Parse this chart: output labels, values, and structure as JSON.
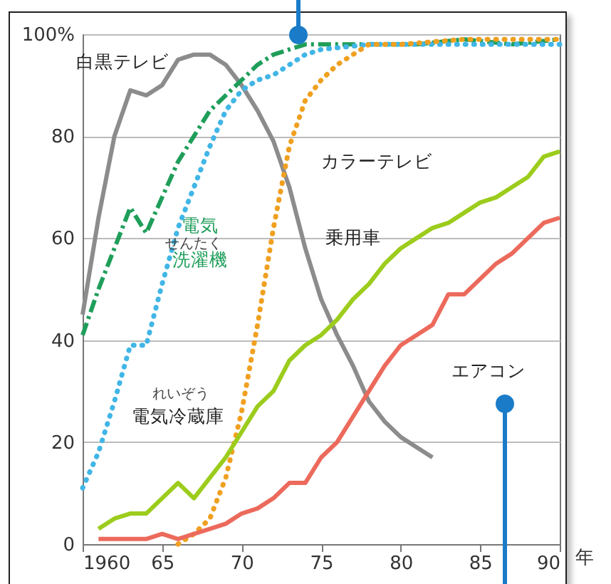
{
  "chart_data": {
    "type": "line",
    "xlim": [
      1960,
      1990
    ],
    "xticks": [
      1960,
      {
        "value": 1965,
        "label": "65"
      },
      {
        "value": 1970,
        "label": "70"
      },
      {
        "value": 1975,
        "label": "75"
      },
      {
        "value": 1980,
        "label": "80"
      },
      {
        "value": 1985,
        "label": "85"
      },
      {
        "value": 1990,
        "label": "90"
      }
    ],
    "xlabel": "年",
    "ylim": [
      0,
      100
    ],
    "yticks": [
      0,
      20,
      40,
      60,
      80,
      {
        "value": 100,
        "label": "100%"
      }
    ],
    "grid": "y",
    "series": [
      {
        "name": "白黒テレビ",
        "color": "#8c8c8c",
        "line_style": "solid",
        "x": [
          1960,
          1961,
          1962,
          1963,
          1964,
          1965,
          1966,
          1967,
          1968,
          1969,
          1970,
          1971,
          1972,
          1973,
          1974,
          1975,
          1976,
          1977,
          1978,
          1979,
          1980,
          1981,
          1982
        ],
        "values": [
          45,
          64,
          80,
          89,
          88,
          90,
          95,
          96,
          96,
          94,
          90,
          85,
          79,
          70,
          58,
          48,
          41,
          35,
          28,
          24,
          21,
          19,
          17
        ]
      },
      {
        "name": "電気洗濯機",
        "color": "#1f9e5a",
        "line_style": "dashed",
        "x": [
          1960,
          1961,
          1962,
          1963,
          1964,
          1965,
          1966,
          1967,
          1968,
          1969,
          1970,
          1971,
          1972,
          1973,
          1974,
          1975,
          1978,
          1981,
          1984,
          1987,
          1990
        ],
        "values": [
          41,
          50,
          58,
          66,
          61,
          68,
          75,
          80,
          85,
          88,
          91,
          94,
          96,
          97,
          98,
          98,
          98,
          98,
          99,
          98,
          99
        ]
      },
      {
        "name": "電気冷蔵庫",
        "color": "#41b6e6",
        "line_style": "dotted",
        "x": [
          1960,
          1961,
          1962,
          1963,
          1964,
          1965,
          1966,
          1967,
          1968,
          1969,
          1970,
          1971,
          1972,
          1973,
          1974,
          1975,
          1978,
          1981,
          1984,
          1987,
          1990
        ],
        "values": [
          11,
          18,
          28,
          39,
          39,
          51,
          62,
          70,
          78,
          85,
          89,
          91,
          92,
          94,
          96,
          97,
          98,
          98,
          98,
          98,
          98
        ]
      },
      {
        "name": "カラーテレビ",
        "color": "#f0a020",
        "line_style": "dotted",
        "x": [
          1966,
          1967,
          1968,
          1969,
          1970,
          1971,
          1972,
          1973,
          1974,
          1975,
          1976,
          1977,
          1978,
          1979,
          1980,
          1984,
          1987,
          1990
        ],
        "values": [
          0,
          2,
          5,
          13,
          26,
          43,
          62,
          78,
          87,
          91,
          94,
          96,
          98,
          98,
          98,
          99,
          99,
          99
        ]
      },
      {
        "name": "乗用車",
        "color": "#9ccc1c",
        "line_style": "solid",
        "x": [
          1961,
          1962,
          1963,
          1964,
          1965,
          1966,
          1967,
          1968,
          1969,
          1970,
          1971,
          1972,
          1973,
          1974,
          1975,
          1976,
          1977,
          1978,
          1979,
          1980,
          1981,
          1982,
          1983,
          1984,
          1985,
          1986,
          1987,
          1988,
          1989,
          1990
        ],
        "values": [
          3,
          5,
          6,
          6,
          9,
          12,
          9,
          13,
          17,
          22,
          27,
          30,
          36,
          39,
          41,
          44,
          48,
          51,
          55,
          58,
          60,
          62,
          63,
          65,
          67,
          68,
          70,
          72,
          76,
          77
        ]
      },
      {
        "name": "エアコン",
        "color": "#ec6a5c",
        "line_style": "solid",
        "x": [
          1961,
          1962,
          1963,
          1964,
          1965,
          1966,
          1967,
          1968,
          1969,
          1970,
          1971,
          1972,
          1973,
          1974,
          1975,
          1976,
          1977,
          1978,
          1979,
          1980,
          1981,
          1982,
          1983,
          1984,
          1985,
          1986,
          1987,
          1988,
          1989,
          1990
        ],
        "values": [
          1,
          1,
          1,
          1,
          2,
          1,
          2,
          3,
          4,
          6,
          7,
          9,
          12,
          12,
          17,
          20,
          25,
          30,
          35,
          39,
          41,
          43,
          49,
          49,
          52,
          55,
          57,
          60,
          63,
          64
        ]
      }
    ],
    "annotations": [
      "せんたく",
      "れいぞう"
    ]
  }
}
